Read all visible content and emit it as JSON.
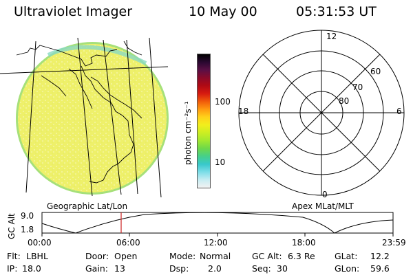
{
  "header": {
    "instrument": "Ultraviolet Imager",
    "date": "10 May 00",
    "time": "05:31:53 UT"
  },
  "colorbar": {
    "unit_label": "photon cm⁻²s⁻¹",
    "ticks": [
      "100",
      "10"
    ],
    "colors": [
      "#000000",
      "#2a0830",
      "#5a0f45",
      "#8a0a2a",
      "#b00a14",
      "#d61a10",
      "#f05a0a",
      "#ff9a10",
      "#ffd21a",
      "#f2ee1c",
      "#ccee22",
      "#a2e830",
      "#6ed84a",
      "#46d08a",
      "#38c8cc",
      "#7cdde8",
      "#c7ecf2",
      "#f2f2f2"
    ]
  },
  "polar": {
    "labels": {
      "top": "12",
      "bottom": "0",
      "left": "18",
      "right": "6"
    },
    "lat_labels": [
      "60",
      "70",
      "80"
    ]
  },
  "footer_labels": {
    "left": "Geographic Lat/Lon",
    "right": "Apex MLat/MLT"
  },
  "altitude_strip": {
    "axis_label": "GC Alt",
    "ymax": "9.0",
    "ymin": "1.8",
    "time_ticks": [
      "00:00",
      "06:00",
      "12:00",
      "18:00",
      "23:59"
    ],
    "marker_time": "05:31"
  },
  "info": {
    "flt_label": "Flt:",
    "flt_value": "LBHL",
    "ip_label": "IP:",
    "ip_value": "18.0",
    "door_label": "Door:",
    "door_value": "Open",
    "gain_label": "Gain:",
    "gain_value": "13",
    "mode_label": "Mode:",
    "mode_value": "Normal",
    "dsp_label": "Dsp:",
    "dsp_value": "2.0",
    "gcalt_label": "GC Alt:",
    "gcalt_value": "6.3 Re",
    "seq_label": "Seq:",
    "seq_value": "30",
    "glat_label": "GLat:",
    "glat_value": "12.2",
    "glon_label": "GLon:",
    "glon_value": "59.6"
  },
  "colors": {
    "earth_fill": "#eef06a",
    "earth_speckle": "#f7f8b8",
    "limb_glow": "#8ad9c2",
    "marker": "#cc2020"
  }
}
